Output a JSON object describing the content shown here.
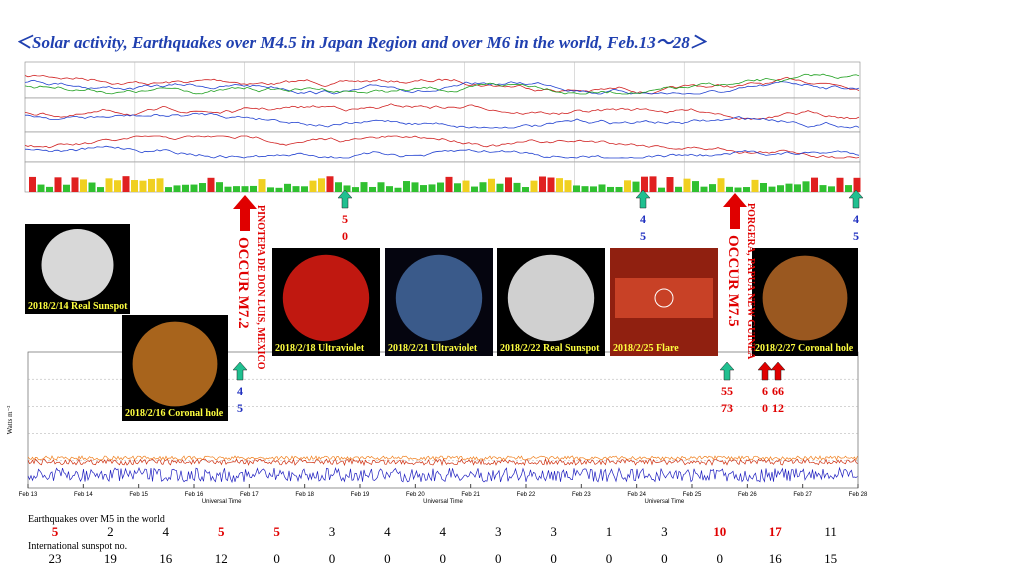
{
  "title": "＜Solar activity, Earthquakes over M4.5 in Japan Region and over M6 in the world, Feb.13～28＞",
  "images": [
    {
      "caption": "2018/2/14 Real Sunspot"
    },
    {
      "caption": "2018/2/16 Coronal hole"
    },
    {
      "caption": "2018/2/18 Ultraviolet"
    },
    {
      "caption": "2018/2/21 Ultraviolet"
    },
    {
      "caption": "2018/2/22 Real Sunspot"
    },
    {
      "caption": "2018/2/25 Flare"
    },
    {
      "caption": "2018/2/27 Coronal hole"
    }
  ],
  "events": [
    {
      "place": "PINOTEPA DE DON LUIS, MEXICO",
      "magnitude": "OCCUR M7.2"
    },
    {
      "place": "PORGERA, PAPUA NEW GUINEA",
      "magnitude": "OCCUR M7.5"
    }
  ],
  "japan_quakes": [
    {
      "lines": [
        "5",
        "0"
      ],
      "color": "#e00000"
    },
    {
      "lines": [
        "4",
        "5"
      ],
      "color": "#2030c0"
    },
    {
      "lines": [
        "4",
        "5"
      ],
      "color": "#2030c0"
    },
    {
      "lines": [
        "4",
        "5"
      ],
      "color": "#2030c0"
    },
    {
      "lines": [
        "55",
        "73"
      ],
      "color": "#e00000"
    },
    {
      "lines": [
        "6",
        "0"
      ],
      "color": "#e00000"
    },
    {
      "lines": [
        "66",
        "12"
      ],
      "color": "#e00000"
    }
  ],
  "xray_chart": {
    "y_label": "Watts m⁻²",
    "time_label": "Universal Time",
    "dates": [
      "Feb 13",
      "Feb 14",
      "Feb 15",
      "Feb 16",
      "Feb 17",
      "Feb 18",
      "Feb 19",
      "Feb 20",
      "Feb 21",
      "Feb 22",
      "Feb 23",
      "Feb 24",
      "Feb 25",
      "Feb 26",
      "Feb 27",
      "Feb 28"
    ]
  },
  "table": {
    "rows": [
      {
        "label": "Earthquakes over M5 in the world",
        "values": [
          5,
          2,
          4,
          5,
          5,
          3,
          4,
          4,
          3,
          3,
          1,
          3,
          10,
          17,
          11
        ],
        "colors": [
          "#e00000",
          "#000",
          "#000",
          "#e00000",
          "#e00000",
          "#000",
          "#000",
          "#000",
          "#000",
          "#000",
          "#000",
          "#000",
          "#e00000",
          "#e00000",
          "#000"
        ]
      },
      {
        "label": "International sunspot no.",
        "values": [
          23,
          19,
          16,
          12,
          0,
          0,
          0,
          0,
          0,
          0,
          0,
          0,
          0,
          16,
          15
        ],
        "colors": [
          "#000",
          "#000",
          "#000",
          "#000",
          "#000",
          "#000",
          "#000",
          "#000",
          "#000",
          "#000",
          "#000",
          "#000",
          "#000",
          "#000",
          "#000"
        ]
      }
    ]
  }
}
